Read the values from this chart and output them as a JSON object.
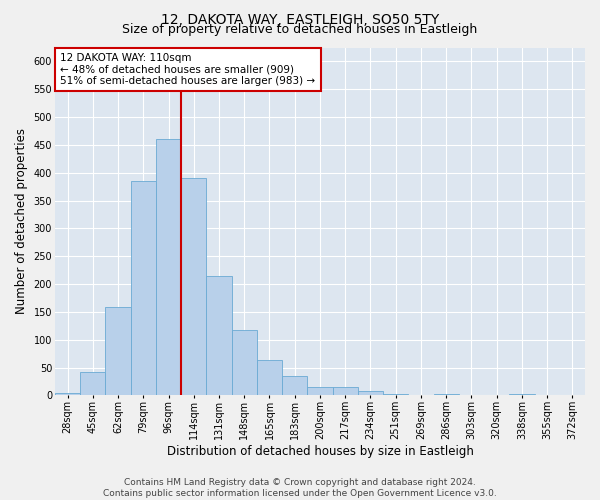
{
  "title": "12, DAKOTA WAY, EASTLEIGH, SO50 5TY",
  "subtitle": "Size of property relative to detached houses in Eastleigh",
  "xlabel": "Distribution of detached houses by size in Eastleigh",
  "ylabel": "Number of detached properties",
  "footer_line1": "Contains HM Land Registry data © Crown copyright and database right 2024.",
  "footer_line2": "Contains public sector information licensed under the Open Government Licence v3.0.",
  "bin_labels": [
    "28sqm",
    "45sqm",
    "62sqm",
    "79sqm",
    "96sqm",
    "114sqm",
    "131sqm",
    "148sqm",
    "165sqm",
    "183sqm",
    "200sqm",
    "217sqm",
    "234sqm",
    "251sqm",
    "269sqm",
    "286sqm",
    "303sqm",
    "320sqm",
    "338sqm",
    "355sqm",
    "372sqm"
  ],
  "bar_values": [
    5,
    42,
    158,
    385,
    460,
    390,
    215,
    118,
    63,
    35,
    15,
    15,
    8,
    3,
    1,
    2,
    0,
    0,
    2,
    0,
    0
  ],
  "bar_color": "#b8d0ea",
  "bar_edge_color": "#6aaad4",
  "vline_x": 4.5,
  "vline_color": "#cc0000",
  "annotation_text": "12 DAKOTA WAY: 110sqm\n← 48% of detached houses are smaller (909)\n51% of semi-detached houses are larger (983) →",
  "annotation_box_color": "#ffffff",
  "annotation_box_edge": "#cc0000",
  "ylim": [
    0,
    625
  ],
  "yticks": [
    0,
    50,
    100,
    150,
    200,
    250,
    300,
    350,
    400,
    450,
    500,
    550,
    600
  ],
  "background_color": "#dde6f0",
  "grid_color": "#ffffff",
  "fig_background": "#f0f0f0",
  "title_fontsize": 10,
  "subtitle_fontsize": 9,
  "axis_label_fontsize": 8.5,
  "tick_fontsize": 7,
  "annotation_fontsize": 7.5,
  "footer_fontsize": 6.5
}
